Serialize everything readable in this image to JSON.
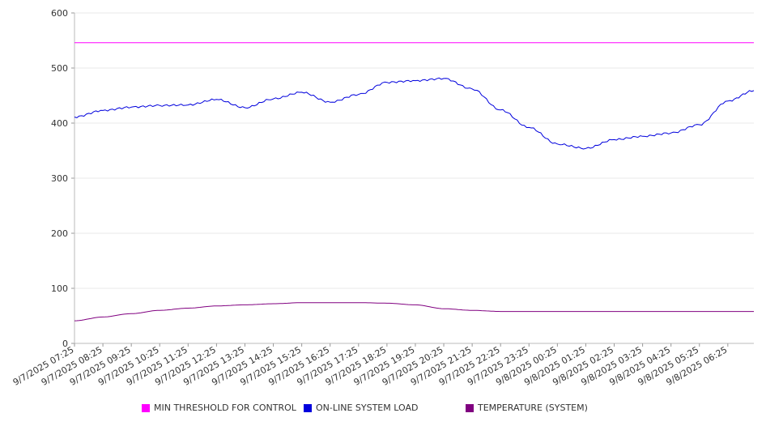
{
  "chart_data": {
    "type": "line",
    "title": "",
    "xlabel": "",
    "ylabel": "",
    "ylim": [
      0,
      600
    ],
    "y_ticks": [
      0,
      100,
      200,
      300,
      400,
      500,
      600
    ],
    "x_ticks": [
      "9/7/2025 07:25",
      "9/7/2025 08:25",
      "9/7/2025 09:25",
      "9/7/2025 10:25",
      "9/7/2025 11:25",
      "9/7/2025 12:25",
      "9/7/2025 13:25",
      "9/7/2025 14:25",
      "9/7/2025 15:25",
      "9/7/2025 16:25",
      "9/7/2025 17:25",
      "9/7/2025 18:25",
      "9/7/2025 19:25",
      "9/7/2025 20:25",
      "9/7/2025 21:25",
      "9/7/2025 22:25",
      "9/7/2025 23:25",
      "9/8/2025 00:25",
      "9/8/2025 01:25",
      "9/8/2025 02:25",
      "9/8/2025 03:25",
      "9/8/2025 04:25",
      "9/8/2025 05:25",
      "9/8/2025 06:25"
    ],
    "grid": true,
    "legend_position": "bottom",
    "series": [
      {
        "name": "MIN THRESHOLD FOR CONTROL",
        "color": "#ff00ff",
        "x": [
          "9/7/2025 07:25",
          "9/7/2025 08:25",
          "9/7/2025 09:25",
          "9/7/2025 10:25",
          "9/7/2025 11:25",
          "9/7/2025 12:25",
          "9/7/2025 13:25",
          "9/7/2025 14:25",
          "9/7/2025 15:25",
          "9/7/2025 16:25",
          "9/7/2025 17:25",
          "9/7/2025 18:25",
          "9/7/2025 19:25",
          "9/7/2025 20:25",
          "9/7/2025 21:25",
          "9/7/2025 22:25",
          "9/7/2025 23:25",
          "9/8/2025 00:25",
          "9/8/2025 01:25",
          "9/8/2025 02:25",
          "9/8/2025 03:25",
          "9/8/2025 04:25",
          "9/8/2025 05:25",
          "9/8/2025 06:25",
          "9/8/2025 07:20"
        ],
        "values": [
          546,
          546,
          546,
          546,
          546,
          546,
          546,
          546,
          546,
          546,
          546,
          546,
          546,
          546,
          546,
          546,
          546,
          546,
          546,
          546,
          546,
          546,
          546,
          546,
          546
        ]
      },
      {
        "name": "ON-LINE SYSTEM LOAD",
        "color": "#0000dd",
        "x": [
          "9/7/2025 07:25",
          "9/7/2025 08:25",
          "9/7/2025 09:25",
          "9/7/2025 10:25",
          "9/7/2025 11:25",
          "9/7/2025 12:25",
          "9/7/2025 13:25",
          "9/7/2025 14:25",
          "9/7/2025 15:25",
          "9/7/2025 16:25",
          "9/7/2025 17:25",
          "9/7/2025 18:25",
          "9/7/2025 19:25",
          "9/7/2025 20:25",
          "9/7/2025 21:25",
          "9/7/2025 22:25",
          "9/7/2025 23:25",
          "9/8/2025 00:25",
          "9/8/2025 01:25",
          "9/8/2025 02:25",
          "9/8/2025 03:25",
          "9/8/2025 04:25",
          "9/8/2025 05:25",
          "9/8/2025 06:25",
          "9/8/2025 07:20"
        ],
        "values": [
          411,
          423,
          429,
          432,
          433,
          443,
          428,
          444,
          456,
          438,
          452,
          474,
          477,
          481,
          462,
          424,
          392,
          362,
          354,
          370,
          376,
          382,
          397,
          440,
          459
        ]
      },
      {
        "name": "TEMPERATURE (SYSTEM)",
        "color": "#800080",
        "x": [
          "9/7/2025 07:25",
          "9/7/2025 08:25",
          "9/7/2025 09:25",
          "9/7/2025 10:25",
          "9/7/2025 11:25",
          "9/7/2025 12:25",
          "9/7/2025 13:25",
          "9/7/2025 14:25",
          "9/7/2025 15:25",
          "9/7/2025 16:25",
          "9/7/2025 17:25",
          "9/7/2025 18:25",
          "9/7/2025 19:25",
          "9/7/2025 20:25",
          "9/7/2025 21:25",
          "9/7/2025 22:25",
          "9/7/2025 23:25",
          "9/8/2025 00:25",
          "9/8/2025 01:25",
          "9/8/2025 02:25",
          "9/8/2025 03:25",
          "9/8/2025 04:25",
          "9/8/2025 05:25",
          "9/8/2025 06:25",
          "9/8/2025 07:20"
        ],
        "values": [
          41,
          48,
          54,
          60,
          64,
          68,
          70,
          72,
          74,
          74,
          74,
          73,
          70,
          63,
          60,
          58,
          58,
          58,
          58,
          58,
          58,
          58,
          58,
          58,
          58
        ]
      }
    ]
  }
}
